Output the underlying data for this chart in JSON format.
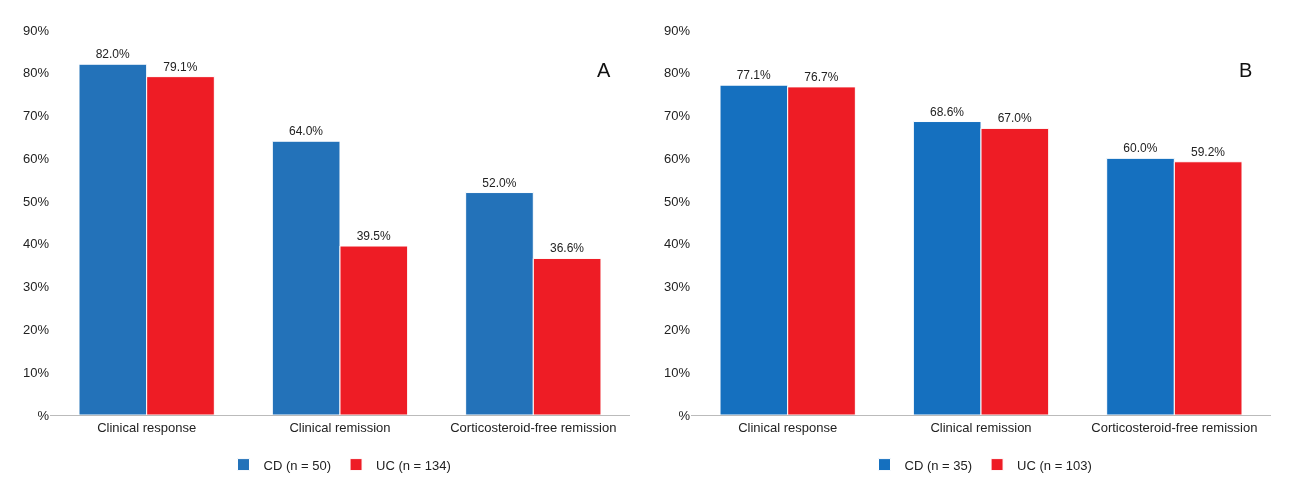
{
  "chart_data": [
    {
      "type": "bar",
      "categories": [
        "Clinical response",
        "Clinical remission",
        "Corticosteroid-free remission"
      ],
      "annotations": [
        {
          "text": "A"
        }
      ],
      "series": [
        {
          "name": "CD (n = 50)",
          "color": "#2372b9",
          "values": [
            82.0,
            64.0,
            52.0
          ],
          "value_labels": [
            "82.0%",
            "64.0%",
            "52.0%"
          ]
        },
        {
          "name": "UC (n = 134)",
          "color": "#ee1c25",
          "values": [
            79.1,
            39.5,
            36.6
          ],
          "value_labels": [
            "79.1%",
            "39.5%",
            "36.6%"
          ]
        }
      ],
      "ylim": [
        0,
        90
      ],
      "yticks": [
        {
          "value": 0,
          "label": "%"
        },
        {
          "value": 10,
          "label": "10%"
        },
        {
          "value": 20,
          "label": "20%"
        },
        {
          "value": 30,
          "label": "30%"
        },
        {
          "value": 40,
          "label": "40%"
        },
        {
          "value": 50,
          "label": "50%"
        },
        {
          "value": 60,
          "label": "60%"
        },
        {
          "value": 70,
          "label": "70%"
        },
        {
          "value": 80,
          "label": "80%"
        },
        {
          "value": 90,
          "label": "90%"
        }
      ],
      "legend": "bottom"
    },
    {
      "type": "bar",
      "categories": [
        "Clinical response",
        "Clinical remission",
        "Corticosteroid-free remission"
      ],
      "annotations": [
        {
          "text": "B"
        }
      ],
      "series": [
        {
          "name": "CD (n = 35)",
          "color": "#1570bf",
          "values": [
            77.1,
            68.6,
            60.0
          ],
          "value_labels": [
            "77.1%",
            "68.6%",
            "60.0%"
          ]
        },
        {
          "name": "UC (n = 103)",
          "color": "#ee1c25",
          "values": [
            76.7,
            67.0,
            59.2
          ],
          "value_labels": [
            "76.7%",
            "67.0%",
            "59.2%"
          ]
        }
      ],
      "ylim": [
        0,
        90
      ],
      "yticks": [
        {
          "value": 0,
          "label": "%"
        },
        {
          "value": 10,
          "label": "10%"
        },
        {
          "value": 20,
          "label": "20%"
        },
        {
          "value": 30,
          "label": "30%"
        },
        {
          "value": 40,
          "label": "40%"
        },
        {
          "value": 50,
          "label": "50%"
        },
        {
          "value": 60,
          "label": "60%"
        },
        {
          "value": 70,
          "label": "70%"
        },
        {
          "value": 80,
          "label": "80%"
        },
        {
          "value": 90,
          "label": "90%"
        }
      ],
      "legend": "bottom"
    }
  ]
}
